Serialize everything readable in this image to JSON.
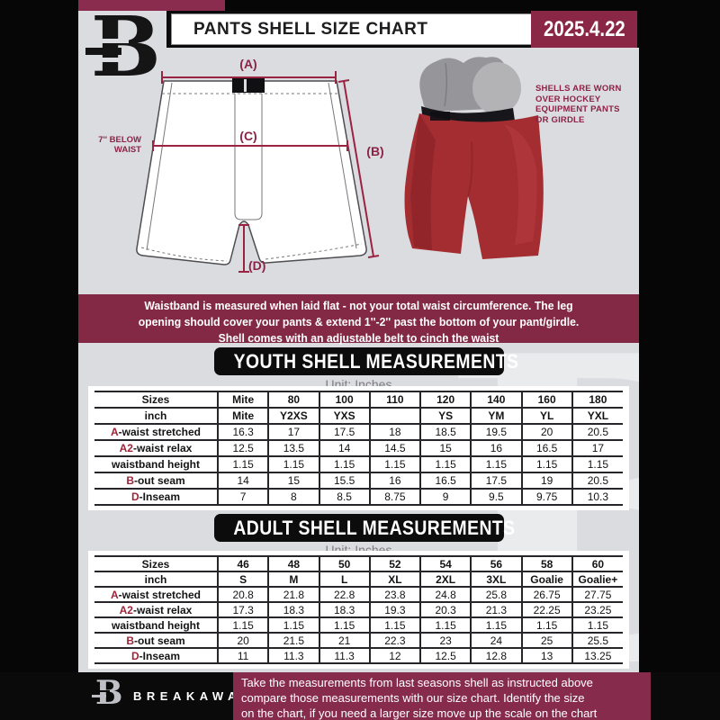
{
  "header": {
    "title": "PANTS SHELL SIZE CHART",
    "date": "2025.4.22",
    "logo_letter": "B"
  },
  "diagram": {
    "label_a": "(A)",
    "label_b": "(B)",
    "label_c": "(C)",
    "label_d": "(D)",
    "below_waist_line1": "7'' BELOW",
    "below_waist_line2": "WAIST",
    "note_lines": [
      "SHELLS ARE WORN",
      "OVER HOCKEY",
      "EQUIPMENT PANTS",
      "OR GIRDLE"
    ]
  },
  "info_banner": {
    "lines": [
      "Waistband is measured when laid flat - not your total waist circumference. The leg",
      "opening should cover your pants & extend 1''-2'' past the bottom of your pant/girdle.",
      "Shell comes with an adjustable belt to cinch the waist"
    ]
  },
  "youth": {
    "title": "YOUTH SHELL MEASUREMENTS",
    "unit": "Unit: Inches",
    "rows": [
      {
        "prefix": "",
        "label": "Sizes",
        "header": true,
        "values": [
          "Mite",
          "80",
          "100",
          "110",
          "120",
          "140",
          "160",
          "180"
        ]
      },
      {
        "prefix": "",
        "label": "inch",
        "header": true,
        "values": [
          "Mite",
          "Y2XS",
          "YXS",
          "",
          "YS",
          "YM",
          "YL",
          "YXL"
        ]
      },
      {
        "prefix": "A",
        "label": "-waist stretched",
        "values": [
          "16.3",
          "17",
          "17.5",
          "18",
          "18.5",
          "19.5",
          "20",
          "20.5"
        ]
      },
      {
        "prefix": "A2",
        "label": "-waist relax",
        "values": [
          "12.5",
          "13.5",
          "14",
          "14.5",
          "15",
          "16",
          "16.5",
          "17"
        ]
      },
      {
        "prefix": "",
        "label": "waistband height",
        "values": [
          "1.15",
          "1.15",
          "1.15",
          "1.15",
          "1.15",
          "1.15",
          "1.15",
          "1.15"
        ]
      },
      {
        "prefix": "B",
        "label": "-out seam",
        "values": [
          "14",
          "15",
          "15.5",
          "16",
          "16.5",
          "17.5",
          "19",
          "20.5"
        ]
      },
      {
        "prefix": "D",
        "label": "-Inseam",
        "values": [
          "7",
          "8",
          "8.5",
          "8.75",
          "9",
          "9.5",
          "9.75",
          "10.3"
        ]
      }
    ]
  },
  "adult": {
    "title": "ADULT SHELL MEASUREMENTS",
    "unit": "Unit: Inches",
    "rows": [
      {
        "prefix": "",
        "label": "Sizes",
        "header": true,
        "values": [
          "46",
          "48",
          "50",
          "52",
          "54",
          "56",
          "58",
          "60"
        ]
      },
      {
        "prefix": "",
        "label": "inch",
        "header": true,
        "values": [
          "S",
          "M",
          "L",
          "XL",
          "2XL",
          "3XL",
          "Goalie",
          "Goalie+"
        ]
      },
      {
        "prefix": "A",
        "label": "-waist stretched",
        "values": [
          "20.8",
          "21.8",
          "22.8",
          "23.8",
          "24.8",
          "25.8",
          "26.75",
          "27.75"
        ]
      },
      {
        "prefix": "A2",
        "label": "-waist relax",
        "values": [
          "17.3",
          "18.3",
          "18.3",
          "19.3",
          "20.3",
          "21.3",
          "22.25",
          "23.25"
        ]
      },
      {
        "prefix": "",
        "label": "waistband height",
        "values": [
          "1.15",
          "1.15",
          "1.15",
          "1.15",
          "1.15",
          "1.15",
          "1.15",
          "1.15"
        ]
      },
      {
        "prefix": "B",
        "label": "-out seam",
        "values": [
          "20",
          "21.5",
          "21",
          "22.3",
          "23",
          "24",
          "25",
          "25.5"
        ]
      },
      {
        "prefix": "D",
        "label": "-Inseam",
        "values": [
          "11",
          "11.3",
          "11.3",
          "12",
          "12.5",
          "12.8",
          "13",
          "13.25"
        ]
      }
    ]
  },
  "footer": {
    "logo_letter": "B",
    "brand": "BREAKAWAY",
    "lines": [
      "Take the measurements from last seasons shell as instructed above",
      "compare those measurements  with our size chart. Identify the size",
      "on the chart, if you need a larger size move up the scale on the chart"
    ]
  },
  "colors": {
    "maroon_accent": "#872b4d",
    "table_letter_accent": "#9b2438",
    "content_gray": "#dbdce0"
  }
}
